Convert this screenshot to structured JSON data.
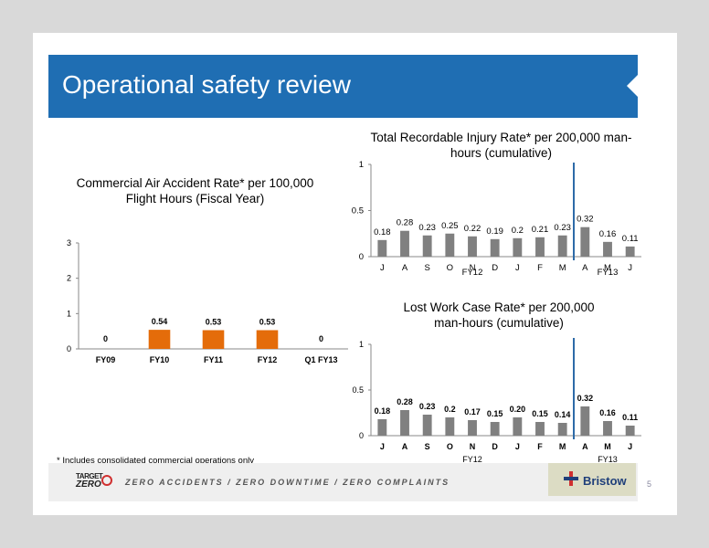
{
  "slide": {
    "title": "Operational safety review",
    "footnote": "* Includes consolidated commercial operations only",
    "slogan": "ZERO ACCIDENTS / ZERO DOWNTIME / ZERO COMPLAINTS",
    "logo_left_line1": "TARGET",
    "logo_left_line2": "ZERO",
    "logo_right": "Bristow",
    "page_number": "5"
  },
  "colors": {
    "banner": "#1f6eb3",
    "bar_orange": "#e46c0a",
    "bar_gray": "#808080",
    "fy_divider": "#2e6ba8"
  },
  "chart_data": [
    {
      "type": "bar",
      "title_lines": [
        "Commercial Air Accident Rate* per 100,000",
        "Flight Hours (Fiscal Year)"
      ],
      "categories": [
        "FY09",
        "FY10",
        "FY11",
        "FY12",
        "Q1 FY13"
      ],
      "values": [
        0,
        0.54,
        0.53,
        0.53,
        0
      ],
      "data_labels": [
        "0",
        "0.54",
        "0.53",
        "0.53",
        "0"
      ],
      "ylim": [
        0,
        3
      ],
      "yticks": [
        "0",
        "1",
        "2",
        "3"
      ],
      "color": "#e46c0a",
      "grid": false
    },
    {
      "type": "bar",
      "title_lines": [
        "Total Recordable Injury Rate* per 200,000 man-",
        "hours (cumulative)"
      ],
      "categories": [
        "J",
        "A",
        "S",
        "O",
        "N",
        "D",
        "J",
        "F",
        "M",
        "A",
        "M",
        "J"
      ],
      "values": [
        0.18,
        0.28,
        0.23,
        0.25,
        0.22,
        0.19,
        0.2,
        0.21,
        0.23,
        0.32,
        0.16,
        0.11
      ],
      "data_labels": [
        "0.18",
        "0.28",
        "0.23",
        "0.25",
        "0.22",
        "0.19",
        "0.2",
        "0.21",
        "0.23",
        "0.32",
        "0.16",
        "0.11"
      ],
      "ylim": [
        0,
        1
      ],
      "yticks": [
        "0",
        "0.5",
        "1"
      ],
      "groups": [
        "FY12",
        "FY13"
      ],
      "divider_after_index": 8,
      "color": "#808080",
      "grid": false
    },
    {
      "type": "bar",
      "title_lines": [
        "Lost Work Case Rate* per 200,000",
        "man-hours (cumulative)"
      ],
      "categories": [
        "J",
        "A",
        "S",
        "O",
        "N",
        "D",
        "J",
        "F",
        "M",
        "A",
        "M",
        "J"
      ],
      "values": [
        0.18,
        0.28,
        0.23,
        0.2,
        0.17,
        0.15,
        0.2,
        0.15,
        0.14,
        0.32,
        0.16,
        0.11
      ],
      "data_labels": [
        "0.18",
        "0.28",
        "0.23",
        "0.2",
        "0.17",
        "0.15",
        "0.20",
        "0.15",
        "0.14",
        "0.32",
        "0.16",
        "0.11"
      ],
      "ylim": [
        0,
        1
      ],
      "yticks": [
        "0",
        "0.5",
        "1"
      ],
      "groups": [
        "FY12",
        "FY13"
      ],
      "divider_after_index": 8,
      "color": "#808080",
      "grid": false
    }
  ]
}
